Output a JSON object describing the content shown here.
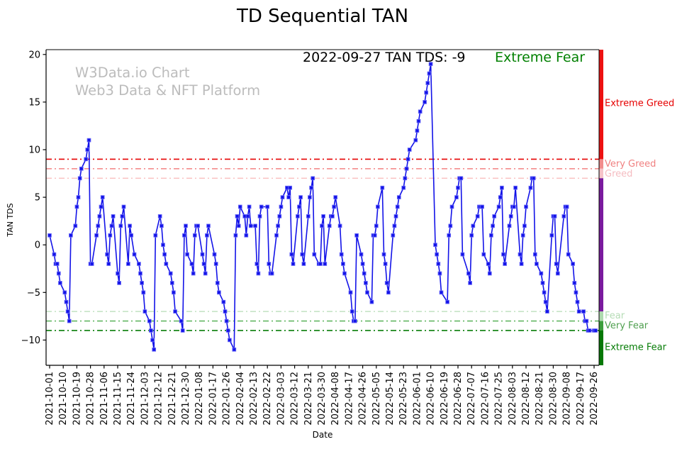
{
  "title": "TD Sequential TAN",
  "watermark": {
    "line1": "W3Data.io Chart",
    "line2": "Web3 Data & NFT Platform",
    "color": "#bcbcbc"
  },
  "annotation": {
    "text": "2022-09-27 TAN TDS: -9",
    "status": "Extreme Fear",
    "status_color": "#008000"
  },
  "chart_data": {
    "type": "line",
    "title": "TD Sequential TAN",
    "xlabel": "Date",
    "ylabel": "TAN TDS",
    "ylim": [
      -12.65,
      20.5
    ],
    "grid": false,
    "line_color": "#1313e8",
    "marker": "square",
    "y_ticks": [
      20,
      15,
      10,
      5,
      0,
      -5,
      -10
    ],
    "x_tick_labels": [
      "2021-10-01",
      "2021-10-10",
      "2021-10-19",
      "2021-10-28",
      "2021-11-06",
      "2021-11-15",
      "2021-11-24",
      "2021-12-03",
      "2021-12-12",
      "2021-12-21",
      "2021-12-30",
      "2022-01-08",
      "2022-01-17",
      "2022-01-26",
      "2022-02-04",
      "2022-02-13",
      "2022-02-22",
      "2022-03-03",
      "2022-03-12",
      "2022-03-21",
      "2022-03-30",
      "2022-04-08",
      "2022-04-17",
      "2022-04-26",
      "2022-05-05",
      "2022-05-14",
      "2022-05-23",
      "2022-06-01",
      "2022-06-10",
      "2022-06-19",
      "2022-06-28",
      "2022-07-07",
      "2022-07-16",
      "2022-07-25",
      "2022-08-03",
      "2022-08-12",
      "2022-08-21",
      "2022-08-30",
      "2022-09-08",
      "2022-09-17",
      "2022-09-26"
    ],
    "thresholds": [
      {
        "value": 9,
        "color": "#e60000",
        "width": 1.6
      },
      {
        "value": 8,
        "color": "#f26b6b",
        "width": 1.2
      },
      {
        "value": 7,
        "color": "#f9b8b8",
        "width": 1.2
      },
      {
        "value": -7,
        "color": "#b5dcb5",
        "width": 1.2
      },
      {
        "value": -8,
        "color": "#2f9e2f",
        "width": 1.2
      },
      {
        "value": -9,
        "color": "#077d07",
        "width": 1.6
      }
    ],
    "gauge_segments": [
      {
        "from": 20.5,
        "to": 9,
        "color": "#ed1111"
      },
      {
        "from": 9,
        "to": 8,
        "color": "#f28c8c"
      },
      {
        "from": 8,
        "to": 7,
        "color": "#f6c3c8"
      },
      {
        "from": 7,
        "to": -7,
        "color": "#7a1b9e"
      },
      {
        "from": -7,
        "to": -8,
        "color": "#aedaae"
      },
      {
        "from": -8,
        "to": -9,
        "color": "#3c9e3c"
      },
      {
        "from": -9,
        "to": -12.65,
        "color": "#067806"
      }
    ],
    "zone_labels": [
      {
        "text": "Extreme Greed",
        "v": 14.9,
        "color": "#e60000"
      },
      {
        "text": "Very Greed",
        "v": 8.55,
        "color": "#f08080"
      },
      {
        "text": "Greed",
        "v": 7.5,
        "color": "#f5bcc1"
      },
      {
        "text": "Fear",
        "v": -7.4,
        "color": "#b5dcb5"
      },
      {
        "text": "Very Fear",
        "v": -8.45,
        "color": "#4f9f4f"
      },
      {
        "text": "Extreme Fear",
        "v": -10.7,
        "color": "#077d07"
      }
    ],
    "series_name": "TAN TDS",
    "points": [
      [
        "2021-10-01",
        1
      ],
      [
        "2021-10-04",
        -1
      ],
      [
        "2021-10-05",
        -2
      ],
      [
        "2021-10-06",
        -2
      ],
      [
        "2021-10-07",
        -3
      ],
      [
        "2021-10-08",
        -4
      ],
      [
        "2021-10-11",
        -5
      ],
      [
        "2021-10-12",
        -6
      ],
      [
        "2021-10-13",
        -7
      ],
      [
        "2021-10-14",
        -8
      ],
      [
        "2021-10-15",
        1
      ],
      [
        "2021-10-18",
        2
      ],
      [
        "2021-10-19",
        4
      ],
      [
        "2021-10-20",
        5
      ],
      [
        "2021-10-21",
        7
      ],
      [
        "2021-10-22",
        8
      ],
      [
        "2021-10-25",
        9
      ],
      [
        "2021-10-26",
        10
      ],
      [
        "2021-10-27",
        11
      ],
      [
        "2021-10-28",
        -2
      ],
      [
        "2021-10-29",
        -2
      ],
      [
        "2021-11-01",
        1
      ],
      [
        "2021-11-02",
        2
      ],
      [
        "2021-11-03",
        3
      ],
      [
        "2021-11-04",
        4
      ],
      [
        "2021-11-05",
        5
      ],
      [
        "2021-11-08",
        -1
      ],
      [
        "2021-11-09",
        -2
      ],
      [
        "2021-11-10",
        1
      ],
      [
        "2021-11-11",
        2
      ],
      [
        "2021-11-12",
        3
      ],
      [
        "2021-11-15",
        -3
      ],
      [
        "2021-11-16",
        -4
      ],
      [
        "2021-11-17",
        2
      ],
      [
        "2021-11-18",
        3
      ],
      [
        "2021-11-19",
        4
      ],
      [
        "2021-11-22",
        -2
      ],
      [
        "2021-11-23",
        2
      ],
      [
        "2021-11-24",
        1
      ],
      [
        "2021-11-26",
        -1
      ],
      [
        "2021-11-29",
        -2
      ],
      [
        "2021-11-30",
        -3
      ],
      [
        "2021-12-01",
        -4
      ],
      [
        "2021-12-02",
        -5
      ],
      [
        "2021-12-03",
        -7
      ],
      [
        "2021-12-06",
        -8
      ],
      [
        "2021-12-07",
        -9
      ],
      [
        "2021-12-08",
        -10
      ],
      [
        "2021-12-09",
        -11
      ],
      [
        "2021-12-10",
        1
      ],
      [
        "2021-12-13",
        3
      ],
      [
        "2021-12-14",
        2
      ],
      [
        "2021-12-15",
        0
      ],
      [
        "2021-12-16",
        -1
      ],
      [
        "2021-12-17",
        -2
      ],
      [
        "2021-12-20",
        -3
      ],
      [
        "2021-12-21",
        -4
      ],
      [
        "2021-12-22",
        -5
      ],
      [
        "2021-12-23",
        -7
      ],
      [
        "2021-12-27",
        -8
      ],
      [
        "2021-12-28",
        -9
      ],
      [
        "2021-12-29",
        1
      ],
      [
        "2021-12-30",
        2
      ],
      [
        "2021-12-31",
        -1
      ],
      [
        "2022-01-03",
        -2
      ],
      [
        "2022-01-04",
        -3
      ],
      [
        "2022-01-05",
        1
      ],
      [
        "2022-01-06",
        2
      ],
      [
        "2022-01-07",
        2
      ],
      [
        "2022-01-10",
        -1
      ],
      [
        "2022-01-11",
        -2
      ],
      [
        "2022-01-12",
        -3
      ],
      [
        "2022-01-13",
        1
      ],
      [
        "2022-01-14",
        2
      ],
      [
        "2022-01-18",
        -1
      ],
      [
        "2022-01-19",
        -2
      ],
      [
        "2022-01-20",
        -4
      ],
      [
        "2022-01-21",
        -5
      ],
      [
        "2022-01-24",
        -6
      ],
      [
        "2022-01-25",
        -7
      ],
      [
        "2022-01-26",
        -8
      ],
      [
        "2022-01-27",
        -9
      ],
      [
        "2022-01-28",
        -10
      ],
      [
        "2022-01-31",
        -11
      ],
      [
        "2022-02-01",
        1
      ],
      [
        "2022-02-02",
        3
      ],
      [
        "2022-02-03",
        2
      ],
      [
        "2022-02-04",
        4
      ],
      [
        "2022-02-07",
        3
      ],
      [
        "2022-02-08",
        1
      ],
      [
        "2022-02-09",
        3
      ],
      [
        "2022-02-10",
        4
      ],
      [
        "2022-02-11",
        2
      ],
      [
        "2022-02-14",
        2
      ],
      [
        "2022-02-15",
        -2
      ],
      [
        "2022-02-16",
        -3
      ],
      [
        "2022-02-17",
        3
      ],
      [
        "2022-02-18",
        4
      ],
      [
        "2022-02-22",
        4
      ],
      [
        "2022-02-23",
        -2
      ],
      [
        "2022-02-24",
        -3
      ],
      [
        "2022-02-25",
        -3
      ],
      [
        "2022-02-28",
        1
      ],
      [
        "2022-03-01",
        2
      ],
      [
        "2022-03-02",
        3
      ],
      [
        "2022-03-03",
        4
      ],
      [
        "2022-03-04",
        5
      ],
      [
        "2022-03-07",
        6
      ],
      [
        "2022-03-08",
        5
      ],
      [
        "2022-03-09",
        6
      ],
      [
        "2022-03-10",
        -1
      ],
      [
        "2022-03-11",
        -2
      ],
      [
        "2022-03-14",
        3
      ],
      [
        "2022-03-15",
        4
      ],
      [
        "2022-03-16",
        5
      ],
      [
        "2022-03-17",
        -1
      ],
      [
        "2022-03-18",
        -2
      ],
      [
        "2022-03-21",
        3
      ],
      [
        "2022-03-22",
        5
      ],
      [
        "2022-03-23",
        6
      ],
      [
        "2022-03-24",
        7
      ],
      [
        "2022-03-25",
        -1
      ],
      [
        "2022-03-28",
        -2
      ],
      [
        "2022-03-29",
        -2
      ],
      [
        "2022-03-30",
        2
      ],
      [
        "2022-03-31",
        3
      ],
      [
        "2022-04-01",
        -2
      ],
      [
        "2022-04-04",
        2
      ],
      [
        "2022-04-05",
        3
      ],
      [
        "2022-04-06",
        3
      ],
      [
        "2022-04-07",
        4
      ],
      [
        "2022-04-08",
        5
      ],
      [
        "2022-04-11",
        2
      ],
      [
        "2022-04-12",
        -1
      ],
      [
        "2022-04-13",
        -2
      ],
      [
        "2022-04-14",
        -3
      ],
      [
        "2022-04-18",
        -5
      ],
      [
        "2022-04-19",
        -7
      ],
      [
        "2022-04-20",
        -8
      ],
      [
        "2022-04-21",
        -8
      ],
      [
        "2022-04-22",
        1
      ],
      [
        "2022-04-25",
        -1
      ],
      [
        "2022-04-26",
        -2
      ],
      [
        "2022-04-27",
        -3
      ],
      [
        "2022-04-28",
        -4
      ],
      [
        "2022-04-29",
        -5
      ],
      [
        "2022-05-02",
        -6
      ],
      [
        "2022-05-03",
        1
      ],
      [
        "2022-05-04",
        1
      ],
      [
        "2022-05-05",
        2
      ],
      [
        "2022-05-06",
        4
      ],
      [
        "2022-05-09",
        6
      ],
      [
        "2022-05-10",
        -1
      ],
      [
        "2022-05-11",
        -2
      ],
      [
        "2022-05-12",
        -4
      ],
      [
        "2022-05-13",
        -5
      ],
      [
        "2022-05-16",
        1
      ],
      [
        "2022-05-17",
        2
      ],
      [
        "2022-05-18",
        3
      ],
      [
        "2022-05-19",
        4
      ],
      [
        "2022-05-20",
        5
      ],
      [
        "2022-05-23",
        6
      ],
      [
        "2022-05-24",
        7
      ],
      [
        "2022-05-25",
        8
      ],
      [
        "2022-05-26",
        9
      ],
      [
        "2022-05-27",
        10
      ],
      [
        "2022-05-31",
        11
      ],
      [
        "2022-06-01",
        12
      ],
      [
        "2022-06-02",
        13
      ],
      [
        "2022-06-03",
        14
      ],
      [
        "2022-06-06",
        15
      ],
      [
        "2022-06-07",
        16
      ],
      [
        "2022-06-08",
        17
      ],
      [
        "2022-06-09",
        18
      ],
      [
        "2022-06-10",
        19
      ],
      [
        "2022-06-13",
        0
      ],
      [
        "2022-06-14",
        -1
      ],
      [
        "2022-06-15",
        -2
      ],
      [
        "2022-06-16",
        -3
      ],
      [
        "2022-06-17",
        -5
      ],
      [
        "2022-06-21",
        -6
      ],
      [
        "2022-06-22",
        1
      ],
      [
        "2022-06-23",
        2
      ],
      [
        "2022-06-24",
        4
      ],
      [
        "2022-06-27",
        5
      ],
      [
        "2022-06-28",
        6
      ],
      [
        "2022-06-29",
        7
      ],
      [
        "2022-06-30",
        7
      ],
      [
        "2022-07-01",
        -1
      ],
      [
        "2022-07-05",
        -3
      ],
      [
        "2022-07-06",
        -4
      ],
      [
        "2022-07-07",
        1
      ],
      [
        "2022-07-08",
        2
      ],
      [
        "2022-07-11",
        3
      ],
      [
        "2022-07-12",
        4
      ],
      [
        "2022-07-13",
        4
      ],
      [
        "2022-07-14",
        4
      ],
      [
        "2022-07-15",
        -1
      ],
      [
        "2022-07-18",
        -2
      ],
      [
        "2022-07-19",
        -3
      ],
      [
        "2022-07-20",
        1
      ],
      [
        "2022-07-21",
        2
      ],
      [
        "2022-07-22",
        3
      ],
      [
        "2022-07-25",
        4
      ],
      [
        "2022-07-26",
        5
      ],
      [
        "2022-07-27",
        6
      ],
      [
        "2022-07-28",
        -1
      ],
      [
        "2022-07-29",
        -2
      ],
      [
        "2022-08-01",
        2
      ],
      [
        "2022-08-02",
        3
      ],
      [
        "2022-08-03",
        4
      ],
      [
        "2022-08-04",
        4
      ],
      [
        "2022-08-05",
        6
      ],
      [
        "2022-08-08",
        -1
      ],
      [
        "2022-08-09",
        -2
      ],
      [
        "2022-08-10",
        1
      ],
      [
        "2022-08-11",
        2
      ],
      [
        "2022-08-12",
        4
      ],
      [
        "2022-08-15",
        6
      ],
      [
        "2022-08-16",
        7
      ],
      [
        "2022-08-17",
        7
      ],
      [
        "2022-08-18",
        -1
      ],
      [
        "2022-08-19",
        -2
      ],
      [
        "2022-08-22",
        -3
      ],
      [
        "2022-08-23",
        -4
      ],
      [
        "2022-08-24",
        -5
      ],
      [
        "2022-08-25",
        -6
      ],
      [
        "2022-08-26",
        -7
      ],
      [
        "2022-08-29",
        1
      ],
      [
        "2022-08-30",
        3
      ],
      [
        "2022-08-31",
        3
      ],
      [
        "2022-09-01",
        -2
      ],
      [
        "2022-09-02",
        -3
      ],
      [
        "2022-09-06",
        3
      ],
      [
        "2022-09-07",
        4
      ],
      [
        "2022-09-08",
        4
      ],
      [
        "2022-09-09",
        -1
      ],
      [
        "2022-09-12",
        -2
      ],
      [
        "2022-09-13",
        -4
      ],
      [
        "2022-09-14",
        -5
      ],
      [
        "2022-09-15",
        -6
      ],
      [
        "2022-09-16",
        -7
      ],
      [
        "2022-09-19",
        -7
      ],
      [
        "2022-09-20",
        -8
      ],
      [
        "2022-09-21",
        -8
      ],
      [
        "2022-09-22",
        -9
      ],
      [
        "2022-09-23",
        -9
      ],
      [
        "2022-09-26",
        -9
      ],
      [
        "2022-09-27",
        -9
      ]
    ]
  }
}
